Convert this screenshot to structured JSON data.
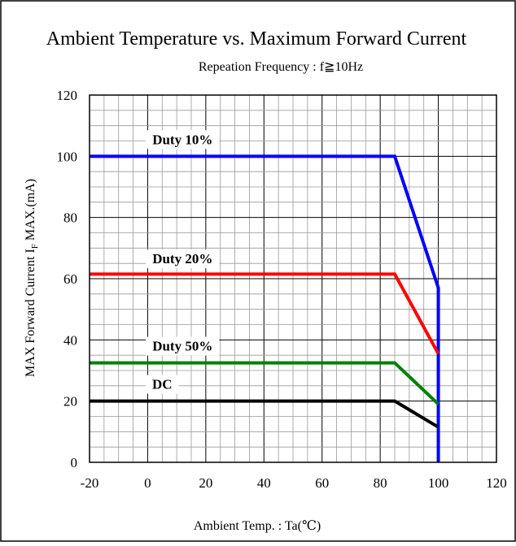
{
  "chart_data": {
    "type": "line",
    "title": "Ambient Temperature vs. Maximum Forward Current",
    "subtitle": "Repeation Frequency : f≧10Hz",
    "xlabel": "Ambient Temp. : Ta(℃)",
    "ylabel": "MAX Forward Current  IF MAX.(mA)",
    "ylabel_main": "MAX Forward Current  I",
    "ylabel_sub": "F",
    "ylabel_tail": " MAX.(mA)",
    "xlim": [
      -20,
      120
    ],
    "ylim": [
      0,
      120
    ],
    "x_ticks": [
      -20,
      0,
      20,
      40,
      60,
      80,
      100,
      120
    ],
    "y_ticks": [
      0,
      20,
      40,
      60,
      80,
      100,
      120
    ],
    "grid": true,
    "series": [
      {
        "name": "Duty 10%",
        "color": "#0000ff",
        "points": [
          [
            -20,
            100
          ],
          [
            85,
            100
          ],
          [
            100,
            57
          ],
          [
            100,
            0
          ]
        ]
      },
      {
        "name": "Duty 20%",
        "color": "#ff0000",
        "points": [
          [
            -20,
            61.5
          ],
          [
            85,
            61.5
          ],
          [
            100,
            35.5
          ]
        ]
      },
      {
        "name": "Duty 50%",
        "color": "#008000",
        "points": [
          [
            -20,
            32.5
          ],
          [
            85,
            32.5
          ],
          [
            100,
            19
          ]
        ]
      },
      {
        "name": "DC",
        "color": "#000000",
        "points": [
          [
            -20,
            20
          ],
          [
            85,
            20
          ],
          [
            100,
            11.5
          ]
        ]
      }
    ],
    "labels": [
      {
        "text": "Duty 10%",
        "x": 12,
        "y": 104
      },
      {
        "text": "Duty 20%",
        "x": 12,
        "y": 65
      },
      {
        "text": "Duty 50%",
        "x": 12,
        "y": 36.5
      },
      {
        "text": "DC",
        "x": 5,
        "y": 24
      }
    ]
  }
}
